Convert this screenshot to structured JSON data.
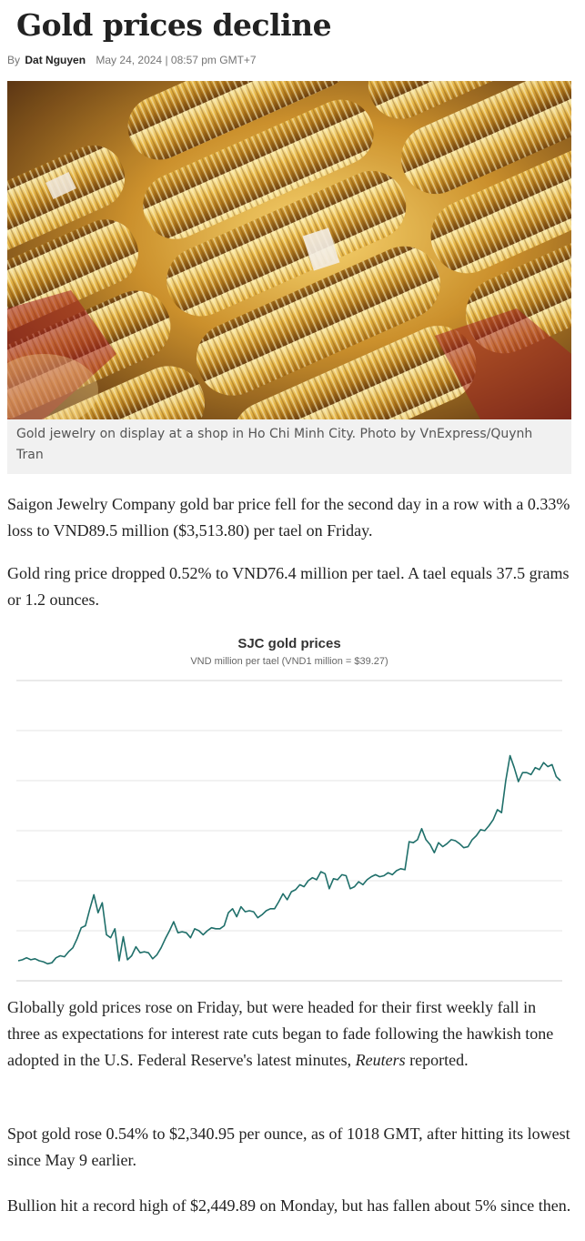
{
  "article": {
    "title": "Gold prices decline",
    "byline_prefix": "By",
    "author": "Dat Nguyen",
    "date": "May 24, 2024 | 08:57 pm GMT+7"
  },
  "photo": {
    "caption": "Gold jewelry on display at a shop in Ho Chi Minh City. Photo by VnExpress/Quynh Tran"
  },
  "paragraphs": {
    "p1": "Saigon Jewelry Company gold bar price fell for the second day in a row with a 0.33% loss to VND89.5 million ($3,513.80) per tael on Friday.",
    "p2": "Gold ring price dropped 0.52% to VND76.4 million per tael. A tael equals 37.5 grams or 1.2 ounces.",
    "p3_before": "Globally gold prices rose on Friday, but were headed for their first weekly fall in three as expectations for interest rate cuts began to fade following the hawkish tone adopted in the U.S. Federal Reserve's latest minutes, ",
    "p3_source": "Reuters",
    "p3_after": " reported.",
    "p4": "Spot gold rose 0.54% to $2,340.95 per ounce, as of 1018 GMT, after hitting its lowest since May 9 earlier.",
    "p5": "Bullion hit a record high of $2,449.89 on Monday, but has fallen about 5% since then."
  },
  "chart_data": {
    "type": "line",
    "title": "SJC gold prices",
    "subtitle": "VND million per tael (VND1 million = $39.27)",
    "xlabel": "",
    "ylabel": "",
    "ylim": [
      65,
      95
    ],
    "grid": true,
    "gridlines": [
      70,
      75,
      80,
      85,
      90
    ],
    "series": [
      {
        "color": "#1f6f6a",
        "values": [
          67.0,
          67.1,
          67.3,
          67.1,
          67.2,
          67.0,
          66.9,
          66.7,
          66.8,
          67.3,
          67.5,
          67.4,
          67.9,
          68.3,
          69.2,
          70.3,
          70.5,
          72.1,
          73.6,
          71.8,
          72.8,
          69.6,
          69.3,
          70.2,
          67.0,
          69.4,
          67.1,
          67.5,
          68.4,
          67.8,
          67.9,
          67.8,
          67.2,
          67.6,
          68.3,
          69.2,
          70.0,
          70.9,
          69.8,
          69.9,
          69.8,
          69.3,
          70.2,
          70.0,
          69.6,
          70.0,
          70.3,
          70.2,
          70.2,
          70.5,
          71.8,
          72.2,
          71.4,
          72.4,
          71.9,
          72.0,
          71.9,
          71.3,
          71.6,
          72.0,
          72.2,
          72.2,
          72.9,
          73.7,
          73.1,
          73.9,
          74.1,
          74.6,
          74.4,
          75.0,
          75.3,
          75.1,
          75.9,
          75.7,
          74.2,
          75.2,
          75.1,
          75.6,
          75.5,
          74.2,
          74.4,
          74.9,
          74.6,
          75.1,
          75.4,
          75.6,
          75.4,
          75.5,
          75.8,
          75.6,
          76.0,
          76.2,
          76.1,
          78.9,
          78.8,
          79.1,
          80.2,
          79.1,
          78.6,
          77.8,
          78.8,
          78.4,
          78.7,
          79.1,
          79.0,
          78.7,
          78.3,
          78.4,
          79.1,
          79.5,
          80.1,
          80.0,
          80.5,
          81.1,
          82.1,
          81.8,
          85.0,
          87.5,
          86.3,
          84.9,
          85.8,
          85.8,
          85.6,
          86.3,
          86.1,
          86.8,
          86.4,
          86.6,
          85.4,
          85.0
        ]
      }
    ]
  }
}
